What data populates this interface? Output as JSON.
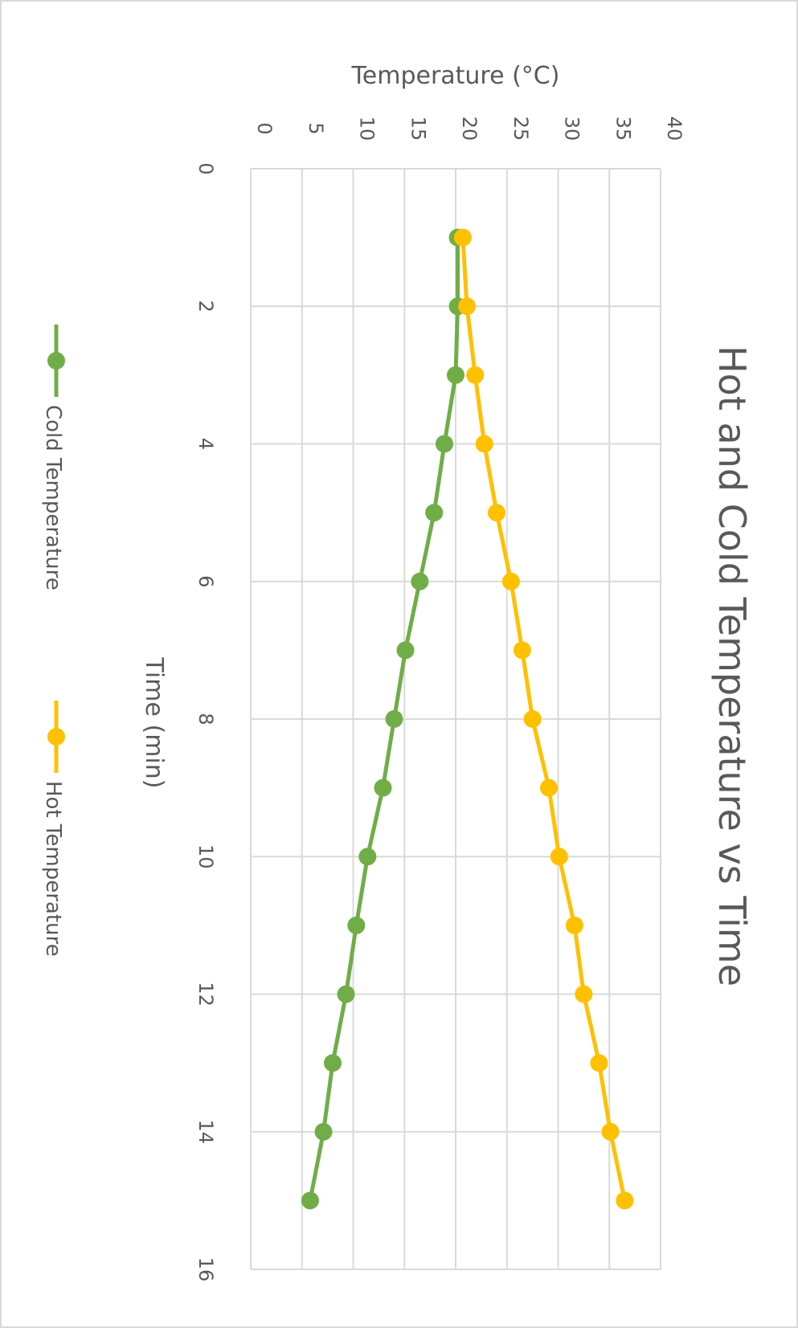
{
  "chart_data": {
    "type": "scatter",
    "title": "Hot and Cold Temperature vs Time",
    "xlabel": "Time (min)",
    "ylabel": "Temperature (°C)",
    "xlim": [
      0,
      16
    ],
    "ylim": [
      0,
      40
    ],
    "x_ticks": [
      "0",
      "2",
      "4",
      "6",
      "8",
      "10",
      "12",
      "14",
      "16"
    ],
    "y_ticks": [
      "0",
      "5",
      "10",
      "15",
      "20",
      "25",
      "30",
      "35",
      "40"
    ],
    "grid": true,
    "legend_position": "bottom",
    "x": [
      1,
      2,
      3,
      4,
      5,
      6,
      7,
      8,
      9,
      10,
      11,
      12,
      13,
      14,
      15
    ],
    "series": [
      {
        "name": "Cold Temperature",
        "color": "#70ad47",
        "values": [
          20.2,
          20.2,
          20.0,
          18.9,
          17.9,
          16.5,
          15.1,
          14.0,
          12.9,
          11.4,
          10.3,
          9.3,
          8.0,
          7.1,
          5.8
        ]
      },
      {
        "name": "Hot Temperature",
        "color": "#ffc000",
        "values": [
          20.7,
          21.1,
          21.9,
          22.8,
          24.0,
          25.4,
          26.5,
          27.5,
          29.1,
          30.1,
          31.6,
          32.5,
          34.0,
          35.1,
          36.5
        ]
      }
    ]
  }
}
